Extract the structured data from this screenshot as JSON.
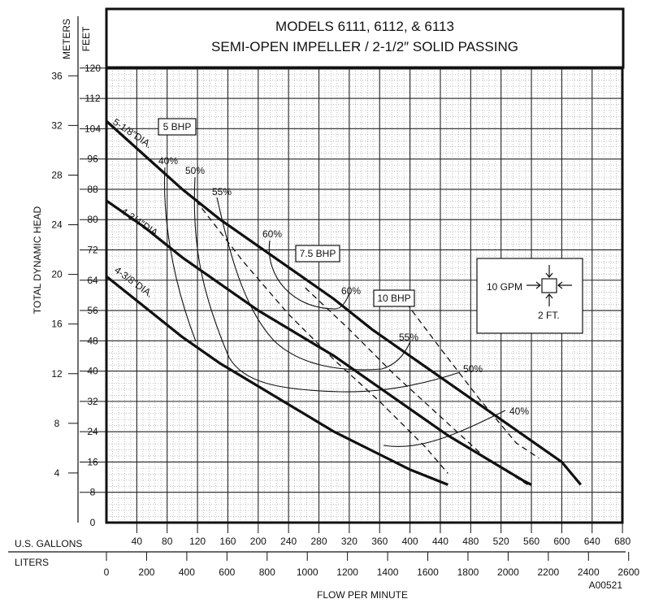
{
  "chart_data": {
    "type": "line",
    "title": [
      "MODELS 6111, 6112, & 6113",
      "SEMI-OPEN IMPELLER / 2-1/2″ SOLID PASSING"
    ],
    "xlabel": "FLOW PER MINUTE",
    "ylabel": "TOTAL DYNAMIC HEAD",
    "axis_names": {
      "meters": "METERS",
      "feet": "FEET",
      "gallons": "U.S. GALLONS",
      "liters": "LITERS"
    },
    "feet_ticks": [
      8,
      16,
      24,
      32,
      40,
      48,
      56,
      64,
      72,
      80,
      88,
      96,
      104,
      112,
      120
    ],
    "feet_zero": "0",
    "meters_ticks": [
      4,
      8,
      12,
      16,
      20,
      24,
      28,
      32,
      36
    ],
    "gallon_ticks": [
      40,
      80,
      120,
      160,
      200,
      240,
      280,
      320,
      360,
      400,
      440,
      480,
      520,
      560,
      600,
      640,
      680
    ],
    "liter_ticks": [
      0,
      200,
      400,
      600,
      800,
      1000,
      1200,
      1400,
      1600,
      1800,
      2000,
      2200,
      2400,
      2600
    ],
    "xlim_gpm": [
      0,
      680
    ],
    "ylim_feet": [
      0,
      120
    ],
    "grid": true,
    "series": [
      {
        "name": "5-1/8″DIA.",
        "x": [
          0,
          50,
          100,
          150,
          200,
          250,
          300,
          350,
          400,
          450,
          500,
          550,
          600,
          625
        ],
        "y": [
          106,
          97,
          88,
          80,
          73,
          66,
          59,
          51,
          44,
          37,
          30,
          23,
          16,
          10
        ]
      },
      {
        "name": "4-3/4″DIA.",
        "x": [
          0,
          50,
          100,
          150,
          200,
          250,
          300,
          350,
          400,
          450,
          500,
          550,
          560
        ],
        "y": [
          85,
          78,
          70,
          63,
          56,
          50,
          44,
          37,
          30,
          23,
          17,
          11,
          10
        ]
      },
      {
        "name": "4-3/8″DIA.",
        "x": [
          0,
          50,
          100,
          150,
          200,
          250,
          300,
          350,
          400,
          450
        ],
        "y": [
          65,
          57,
          49,
          42,
          36,
          30,
          24,
          19,
          14,
          10
        ]
      }
    ],
    "power_lines": [
      {
        "label": "5 BHP",
        "x": [
          118,
          180,
          240,
          300,
          360,
          420,
          450
        ],
        "y": [
          85,
          69,
          55,
          43,
          32,
          20,
          13
        ]
      },
      {
        "label": "7.5 BHP",
        "x": [
          262,
          320,
          380,
          440,
          500,
          555
        ],
        "y": [
          62,
          51,
          39,
          28,
          17,
          10
        ]
      },
      {
        "label": "10 BHP",
        "x": [
          395,
          440,
          490,
          540,
          570
        ],
        "y": [
          58,
          46,
          33,
          21,
          17
        ]
      }
    ],
    "efficiency_labels": [
      "40%",
      "50%",
      "55%",
      "60%",
      "60%",
      "55%",
      "50%",
      "40%"
    ],
    "legend_box": {
      "flow": "10 GPM",
      "head": "2 FT."
    },
    "code": "A00521"
  }
}
